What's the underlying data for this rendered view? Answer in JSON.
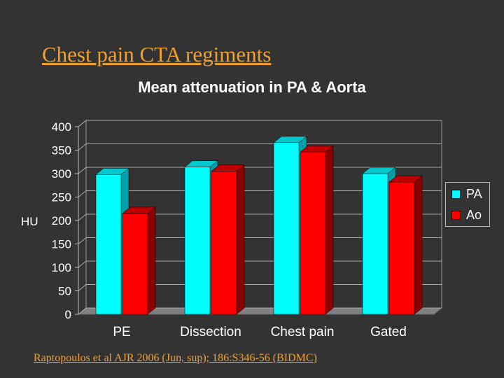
{
  "slide": {
    "title": "Chest pain CTA regiments",
    "citation": "Raptopoulos et al AJR 2006 (Jun, sup); 186:S346-56 (BIDMC)"
  },
  "chart_data": {
    "type": "bar",
    "title": "Mean attenuation in PA & Aorta",
    "xlabel": "",
    "ylabel": "HU",
    "ylim": [
      0,
      400
    ],
    "yticks": [
      0,
      50,
      100,
      150,
      200,
      250,
      300,
      350,
      400
    ],
    "categories": [
      "PE",
      "Dissection",
      "Chest pain",
      "Gated"
    ],
    "series": [
      {
        "name": "PA",
        "values": [
          298,
          314,
          366,
          300
        ],
        "color": "#00ffff",
        "side_color": "#00a0a8",
        "top_color": "#00c8cc"
      },
      {
        "name": "Ao",
        "values": [
          215,
          305,
          346,
          282
        ],
        "color": "#ff0000",
        "side_color": "#8b0000",
        "top_color": "#c00000"
      }
    ],
    "legend_position": "right",
    "grid": true
  }
}
